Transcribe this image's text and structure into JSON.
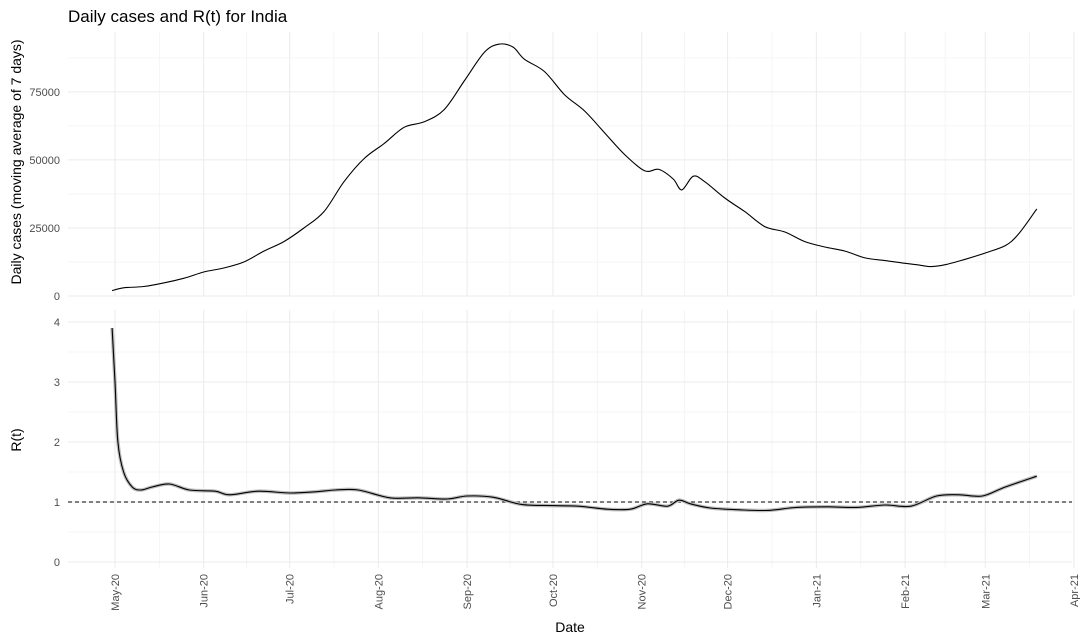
{
  "chart_data": {
    "type": "line",
    "title": "Daily cases and R(t) for India",
    "xlabel": "Date",
    "x_ticks": [
      "May-20",
      "Jun-20",
      "Jul-20",
      "Aug-20",
      "Sep-20",
      "Oct-20",
      "Nov-20",
      "Dec-20",
      "Jan-21",
      "Feb-21",
      "Mar-21",
      "Apr-21"
    ],
    "x_tick_dates": [
      "2020-05-01",
      "2020-06-01",
      "2020-07-01",
      "2020-08-01",
      "2020-09-01",
      "2020-10-01",
      "2020-11-01",
      "2020-12-01",
      "2021-01-01",
      "2021-02-01",
      "2021-03-01",
      "2021-04-01"
    ],
    "grid": true,
    "panels": [
      {
        "ylabel": "Daily cases (moving average of 7 days)",
        "ylim": [
          0,
          97000
        ],
        "y_ticks": [
          0,
          25000,
          50000,
          75000
        ],
        "y_tick_labels": [
          "0",
          "25000",
          "50000",
          "75000"
        ],
        "series": [
          {
            "x": [
              "2020-04-30",
              "2020-05-04",
              "2020-05-11",
              "2020-05-18",
              "2020-05-25",
              "2020-06-01",
              "2020-06-08",
              "2020-06-15",
              "2020-06-22",
              "2020-06-29",
              "2020-07-06",
              "2020-07-13",
              "2020-07-20",
              "2020-07-27",
              "2020-08-03",
              "2020-08-10",
              "2020-08-17",
              "2020-08-24",
              "2020-08-31",
              "2020-09-07",
              "2020-09-12",
              "2020-09-17",
              "2020-09-21",
              "2020-09-28",
              "2020-10-05",
              "2020-10-12",
              "2020-10-19",
              "2020-10-26",
              "2020-11-02",
              "2020-11-07",
              "2020-11-12",
              "2020-11-15",
              "2020-11-19",
              "2020-11-23",
              "2020-11-30",
              "2020-12-07",
              "2020-12-14",
              "2020-12-21",
              "2020-12-28",
              "2021-01-04",
              "2021-01-11",
              "2021-01-18",
              "2021-01-25",
              "2021-02-01",
              "2021-02-05",
              "2021-02-10",
              "2021-02-15",
              "2021-02-22",
              "2021-03-01",
              "2021-03-08",
              "2021-03-12",
              "2021-03-16",
              "2021-03-19"
            ],
            "values": [
              2000,
              3000,
              3500,
              4800,
              6500,
              8800,
              10300,
              12500,
              16500,
              20000,
              25000,
              31000,
              42000,
              50500,
              56000,
              62000,
              64000,
              68500,
              79000,
              89500,
              92500,
              91500,
              87000,
              82500,
              74000,
              68000,
              60000,
              52000,
              46000,
              46500,
              43000,
              39000,
              44000,
              42000,
              36000,
              31000,
              25500,
              23500,
              20000,
              18000,
              16500,
              14000,
              13000,
              12000,
              11500,
              10800,
              11500,
              13500,
              15800,
              18500,
              22000,
              27500,
              32000
            ]
          }
        ]
      },
      {
        "ylabel": "R(t)",
        "ylim": [
          -0.1,
          4.2
        ],
        "y_ticks": [
          0,
          1,
          2,
          3,
          4
        ],
        "y_tick_labels": [
          "0",
          "1",
          "2",
          "3",
          "4"
        ],
        "reference_line": {
          "y": 1,
          "style": "dashed"
        },
        "series": [
          {
            "x": [
              "2020-04-30",
              "2020-05-01",
              "2020-05-02",
              "2020-05-04",
              "2020-05-07",
              "2020-05-10",
              "2020-05-14",
              "2020-05-20",
              "2020-05-27",
              "2020-06-05",
              "2020-06-10",
              "2020-06-20",
              "2020-07-01",
              "2020-07-10",
              "2020-07-17",
              "2020-07-25",
              "2020-08-05",
              "2020-08-15",
              "2020-08-25",
              "2020-09-01",
              "2020-09-10",
              "2020-09-20",
              "2020-10-01",
              "2020-10-10",
              "2020-10-20",
              "2020-10-28",
              "2020-11-03",
              "2020-11-10",
              "2020-11-14",
              "2020-11-18",
              "2020-11-25",
              "2020-12-05",
              "2020-12-15",
              "2020-12-25",
              "2021-01-05",
              "2021-01-15",
              "2021-01-25",
              "2021-02-03",
              "2021-02-12",
              "2021-02-20",
              "2021-02-28",
              "2021-03-08",
              "2021-03-19"
            ],
            "values": [
              3.9,
              3.0,
              2.0,
              1.5,
              1.25,
              1.2,
              1.25,
              1.3,
              1.2,
              1.18,
              1.12,
              1.18,
              1.15,
              1.17,
              1.2,
              1.2,
              1.07,
              1.07,
              1.05,
              1.1,
              1.08,
              0.96,
              0.94,
              0.93,
              0.88,
              0.88,
              0.97,
              0.93,
              1.03,
              0.97,
              0.9,
              0.87,
              0.86,
              0.91,
              0.92,
              0.91,
              0.95,
              0.93,
              1.1,
              1.12,
              1.1,
              1.25,
              1.43
            ]
          }
        ]
      }
    ]
  }
}
